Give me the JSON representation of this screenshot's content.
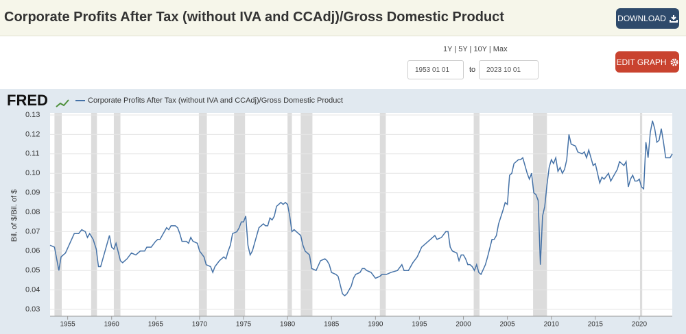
{
  "header": {
    "title": "Corporate Profits After Tax (without IVA and CCAdj)/Gross Domestic Product",
    "download": "DOWNLOAD"
  },
  "controls": {
    "ranges": "1Y | 5Y | 10Y | Max",
    "start_date": "1953 01 01",
    "to": "to",
    "end_date": "2023 10 01",
    "edit_graph": "EDIT GRAPH"
  },
  "logo": "FRED",
  "chart_data": {
    "type": "line",
    "y_label": "Bil. of $/Bil. of $",
    "xlim": [
      1953,
      2023.75
    ],
    "xticks": [
      1955,
      1960,
      1965,
      1970,
      1975,
      1980,
      1985,
      1990,
      1995,
      2000,
      2005,
      2010,
      2015,
      2020
    ],
    "ylim": [
      0.03,
      0.13
    ],
    "yticks": [
      0.03,
      0.04,
      0.05,
      0.06,
      0.07,
      0.08,
      0.09,
      {
        "value": 0.1,
        "label": "0.10"
      },
      0.11,
      0.12,
      0.13
    ],
    "grid": true,
    "shade_color": "#dcdcdc",
    "shaded_periods": [
      [
        1953.5,
        1954.33
      ],
      [
        1957.67,
        1958.33
      ],
      [
        1960.25,
        1961.0
      ],
      [
        1969.92,
        1970.83
      ],
      [
        1973.92,
        1975.17
      ],
      [
        1980.0,
        1980.5
      ],
      [
        1981.5,
        1982.83
      ],
      [
        1990.5,
        1991.17
      ],
      [
        2001.17,
        2001.83
      ],
      [
        2007.92,
        2009.5
      ],
      [
        2020.08,
        2020.33
      ]
    ],
    "x": [
      1953.0,
      1953.5,
      1954.0,
      1954.25,
      1954.75,
      1955.25,
      1955.75,
      1956.25,
      1956.6,
      1957.0,
      1957.25,
      1957.5,
      1957.9,
      1958.25,
      1958.5,
      1958.75,
      1959.25,
      1959.75,
      1960.0,
      1960.25,
      1960.5,
      1961.0,
      1961.25,
      1961.75,
      1962.25,
      1962.75,
      1963.25,
      1963.75,
      1964.0,
      1964.5,
      1965.0,
      1965.25,
      1965.5,
      1966.0,
      1966.25,
      1966.5,
      1966.75,
      1967.25,
      1967.5,
      1967.75,
      1968.0,
      1968.5,
      1968.75,
      1969.0,
      1969.25,
      1969.75,
      1970.0,
      1970.5,
      1970.75,
      1971.25,
      1971.5,
      1971.75,
      1972.25,
      1972.75,
      1973.0,
      1973.25,
      1973.5,
      1973.75,
      1974.25,
      1974.5,
      1974.75,
      1975.0,
      1975.25,
      1975.5,
      1975.75,
      1976.0,
      1976.5,
      1976.75,
      1977.25,
      1977.5,
      1977.75,
      1978.0,
      1978.25,
      1978.5,
      1978.75,
      1979.25,
      1979.5,
      1979.75,
      1980.0,
      1980.25,
      1980.5,
      1980.75,
      1981.0,
      1981.5,
      1981.75,
      1982.0,
      1982.5,
      1982.75,
      1983.25,
      1983.75,
      1984.25,
      1984.5,
      1984.75,
      1985.0,
      1985.5,
      1985.75,
      1986.25,
      1986.5,
      1986.75,
      1987.25,
      1987.5,
      1987.75,
      1988.25,
      1988.5,
      1988.75,
      1989.0,
      1989.5,
      1990.0,
      1990.5,
      1990.75,
      1991.25,
      1991.75,
      1992.5,
      1993.0,
      1993.25,
      1993.75,
      1994.25,
      1994.75,
      1995.25,
      1995.75,
      1996.25,
      1996.75,
      1997.0,
      1997.5,
      1998.0,
      1998.25,
      1998.5,
      1998.75,
      1999.25,
      1999.5,
      1999.75,
      2000.0,
      2000.25,
      2000.5,
      2000.75,
      2001.0,
      2001.25,
      2001.5,
      2001.75,
      2002.0,
      2002.5,
      2002.75,
      2003.25,
      2003.5,
      2003.75,
      2004.0,
      2004.5,
      2004.75,
      2005.0,
      2005.25,
      2005.5,
      2005.75,
      2006.25,
      2006.5,
      2006.75,
      2007.0,
      2007.25,
      2007.5,
      2007.75,
      2008.0,
      2008.25,
      2008.5,
      2008.75,
      2009.0,
      2009.25,
      2009.5,
      2009.75,
      2010.0,
      2010.25,
      2010.5,
      2010.75,
      2011.0,
      2011.25,
      2011.5,
      2011.75,
      2012.0,
      2012.25,
      2012.75,
      2013.0,
      2013.5,
      2013.75,
      2014.0,
      2014.25,
      2014.5,
      2014.75,
      2015.0,
      2015.25,
      2015.5,
      2015.75,
      2016.0,
      2016.5,
      2016.75,
      2017.0,
      2017.5,
      2017.75,
      2018.0,
      2018.25,
      2018.5,
      2018.75,
      2019.0,
      2019.25,
      2019.5,
      2019.75,
      2020.0,
      2020.25,
      2020.5,
      2020.75,
      2021.0,
      2021.25,
      2021.5,
      2021.75,
      2022.0,
      2022.25,
      2022.5,
      2022.75,
      2023.0,
      2023.25,
      2023.5,
      2023.75
    ],
    "series": [
      {
        "name": "Corporate Profits After Tax (without IVA and CCAdj)/Gross Domestic Product",
        "color": "#4572a7",
        "values": [
          0.063,
          0.062,
          0.05,
          0.057,
          0.059,
          0.064,
          0.069,
          0.069,
          0.071,
          0.07,
          0.067,
          0.069,
          0.066,
          0.061,
          0.052,
          0.052,
          0.06,
          0.068,
          0.062,
          0.061,
          0.064,
          0.055,
          0.054,
          0.056,
          0.059,
          0.058,
          0.06,
          0.06,
          0.062,
          0.062,
          0.065,
          0.066,
          0.066,
          0.07,
          0.072,
          0.071,
          0.073,
          0.073,
          0.072,
          0.069,
          0.065,
          0.065,
          0.064,
          0.067,
          0.065,
          0.064,
          0.06,
          0.057,
          0.053,
          0.052,
          0.049,
          0.052,
          0.055,
          0.057,
          0.056,
          0.06,
          0.063,
          0.069,
          0.07,
          0.072,
          0.075,
          0.075,
          0.078,
          0.063,
          0.058,
          0.06,
          0.068,
          0.072,
          0.074,
          0.073,
          0.073,
          0.077,
          0.076,
          0.078,
          0.083,
          0.085,
          0.084,
          0.085,
          0.084,
          0.078,
          0.07,
          0.071,
          0.07,
          0.068,
          0.063,
          0.06,
          0.058,
          0.051,
          0.05,
          0.055,
          0.056,
          0.055,
          0.053,
          0.049,
          0.048,
          0.047,
          0.038,
          0.037,
          0.038,
          0.042,
          0.046,
          0.048,
          0.049,
          0.051,
          0.051,
          0.05,
          0.049,
          0.046,
          0.047,
          0.048,
          0.048,
          0.049,
          0.05,
          0.053,
          0.05,
          0.05,
          0.054,
          0.057,
          0.062,
          0.064,
          0.066,
          0.068,
          0.066,
          0.067,
          0.07,
          0.07,
          0.062,
          0.06,
          0.059,
          0.055,
          0.058,
          0.058,
          0.056,
          0.053,
          0.053,
          0.052,
          0.05,
          0.053,
          0.049,
          0.048,
          0.053,
          0.057,
          0.066,
          0.066,
          0.068,
          0.074,
          0.081,
          0.085,
          0.084,
          0.099,
          0.1,
          0.105,
          0.107,
          0.107,
          0.108,
          0.104,
          0.1,
          0.097,
          0.1,
          0.09,
          0.089,
          0.086,
          0.053,
          0.078,
          0.083,
          0.094,
          0.103,
          0.107,
          0.105,
          0.108,
          0.101,
          0.103,
          0.1,
          0.102,
          0.107,
          0.12,
          0.115,
          0.114,
          0.111,
          0.11,
          0.111,
          0.108,
          0.112,
          0.108,
          0.104,
          0.105,
          0.1,
          0.095,
          0.098,
          0.097,
          0.1,
          0.096,
          0.098,
          0.102,
          0.106,
          0.105,
          0.104,
          0.106,
          0.093,
          0.097,
          0.099,
          0.096,
          0.096,
          0.097,
          0.093,
          0.092,
          0.116,
          0.108,
          0.121,
          0.127,
          0.123,
          0.116,
          0.117,
          0.123,
          0.116,
          0.108,
          0.108,
          0.108,
          0.11
        ]
      }
    ]
  }
}
